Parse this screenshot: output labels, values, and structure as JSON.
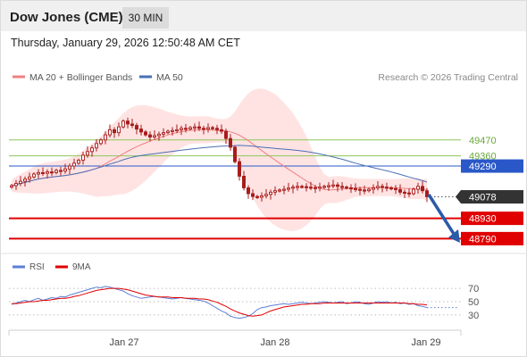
{
  "header": {
    "title": "Dow Jones (CME)",
    "interval": "30 MIN",
    "datetime": "Thursday, January 29, 2026 12:50:48 AM CET"
  },
  "legend": {
    "ma20_bb": "MA 20 + Bollinger Bands",
    "ma50": "MA 50",
    "credit": "Research © 2026 Trading Central"
  },
  "rsi_legend": {
    "rsi": "RSI",
    "ma9": "9MA"
  },
  "colors": {
    "bollinger": "#ffd9d9",
    "ma20": "#f08080",
    "ma50": "#4a6fb5",
    "candle": "#a81b1b",
    "support": "#e00000",
    "pivot": "#2a58c8",
    "resistance": "#8cc65a",
    "current": "#333333",
    "rsi": "#5b7fd6",
    "rsi_ma": "#e00000"
  },
  "chart_data": [
    {
      "type": "candlestick",
      "x_ticks": [
        "Jan 27",
        "Jan 28",
        "Jan 29"
      ],
      "levels": [
        {
          "label": "49470",
          "value": 49470,
          "kind": "resistance"
        },
        {
          "label": "49360",
          "value": 49360,
          "kind": "resistance"
        },
        {
          "label": "49290",
          "value": 49290,
          "kind": "pivot"
        },
        {
          "label": "49078",
          "value": 49078,
          "kind": "current"
        },
        {
          "label": "48930",
          "value": 48930,
          "kind": "support"
        },
        {
          "label": "48790",
          "value": 48790,
          "kind": "support"
        }
      ],
      "series": [
        {
          "name": "MA 20 + Bollinger Bands"
        },
        {
          "name": "MA 50"
        }
      ],
      "close": [
        49155,
        49170,
        49185,
        49200,
        49215,
        49235,
        49245,
        49240,
        49250,
        49245,
        49260,
        49255,
        49270,
        49290,
        49310,
        49330,
        49365,
        49390,
        49415,
        49445,
        49470,
        49505,
        49540,
        49520,
        49560,
        49600,
        49580,
        49570,
        49545,
        49525,
        49505,
        49490,
        49500,
        49510,
        49520,
        49530,
        49535,
        49540,
        49550,
        49545,
        49555,
        49560,
        49550,
        49545,
        49555,
        49550,
        49540,
        49530,
        49480,
        49420,
        49320,
        49220,
        49140,
        49100,
        49080,
        49075,
        49085,
        49095,
        49110,
        49120,
        49125,
        49130,
        49138,
        49145,
        49150,
        49148,
        49145,
        49142,
        49140,
        49145,
        49150,
        49155,
        49160,
        49150,
        49145,
        49140,
        49135,
        49130,
        49125,
        49120,
        49130,
        49140,
        49150,
        49145,
        49140,
        49135,
        49128,
        49110,
        49105,
        49100,
        49130,
        49150,
        49120,
        49078
      ],
      "y_range": [
        48700,
        49850
      ]
    },
    {
      "type": "line",
      "title": "RSI",
      "y_ticks": [
        70,
        50,
        30
      ],
      "y_range": [
        15,
        85
      ],
      "series": [
        {
          "name": "RSI",
          "values": [
            46,
            48,
            50,
            52,
            50,
            53,
            55,
            52,
            54,
            56,
            55,
            58,
            57,
            60,
            62,
            64,
            66,
            68,
            70,
            72,
            71,
            73,
            72,
            70,
            68,
            66,
            62,
            59,
            57,
            55,
            56,
            57,
            58,
            57,
            56,
            55,
            54,
            55,
            56,
            55,
            54,
            53,
            52,
            51,
            48,
            44,
            40,
            36,
            33,
            28,
            26,
            25,
            26,
            28,
            32,
            38,
            41,
            42,
            44,
            45,
            46,
            47,
            46,
            47,
            48,
            49,
            48,
            47,
            48,
            49,
            50,
            49,
            48,
            49,
            50,
            47,
            48,
            50,
            49,
            47,
            46,
            48,
            50,
            49,
            50,
            48,
            49,
            47,
            48,
            46,
            47,
            44,
            43,
            41
          ]
        },
        {
          "name": "9MA",
          "values": [
            47,
            47,
            48,
            49,
            50,
            50,
            51,
            52,
            52,
            53,
            54,
            55,
            55,
            56,
            58,
            59,
            61,
            63,
            65,
            67,
            68,
            69,
            70,
            70,
            70,
            69,
            68,
            66,
            64,
            62,
            60,
            59,
            58,
            57,
            57,
            57,
            56,
            56,
            56,
            55,
            55,
            55,
            54,
            54,
            53,
            51,
            49,
            46,
            43,
            39,
            36,
            33,
            31,
            29,
            28,
            29,
            30,
            33,
            36,
            38,
            40,
            42,
            43,
            44,
            45,
            46,
            46,
            47,
            47,
            47,
            48,
            48,
            48,
            48,
            48,
            48,
            48,
            48,
            48,
            48,
            48,
            48,
            48,
            48,
            48,
            48,
            48,
            48,
            48,
            47,
            47,
            46,
            46,
            45
          ]
        }
      ]
    }
  ]
}
